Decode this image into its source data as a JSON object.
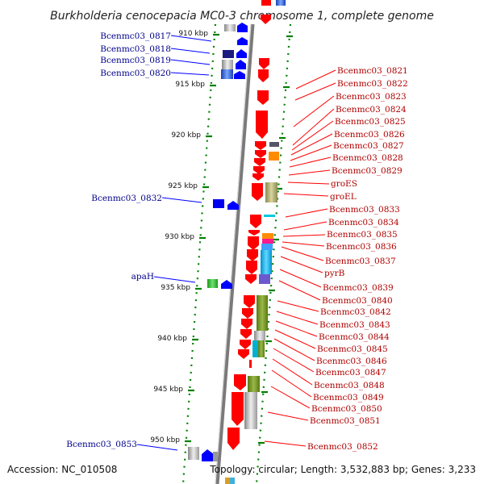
{
  "title": "Burkholderia cenocepacia MC0-3 chromosome 1, complete genome",
  "accession": "Accession: NC_010508",
  "topology": "Topology: circular; Length: 3,532,883 bp; Genes: 3,233",
  "colors": {
    "genome_line": "#888888",
    "forward_gene": "#ff0000",
    "reverse_gene": "#0000ff",
    "blue_label": "#00008b",
    "red_label": "#b00000",
    "dots": "#008000"
  },
  "ticks": [
    {
      "label": "910 kbp"
    },
    {
      "label": "915 kbp"
    },
    {
      "label": "920 kbp"
    },
    {
      "label": "925 kbp"
    },
    {
      "label": "930 kbp"
    },
    {
      "label": "935 kbp"
    },
    {
      "label": "940 kbp"
    },
    {
      "label": "945 kbp"
    },
    {
      "label": "950 kbp"
    }
  ],
  "left_labels": [
    {
      "text": "Bcenmc03_0817"
    },
    {
      "text": "Bcenmc03_0818"
    },
    {
      "text": "Bcenmc03_0819"
    },
    {
      "text": "Bcenmc03_0820"
    },
    {
      "text": "Bcenmc03_0832"
    },
    {
      "text": "apaH"
    },
    {
      "text": "Bcenmc03_0853"
    }
  ],
  "right_labels": [
    {
      "text": "Bcenmc03_0821"
    },
    {
      "text": "Bcenmc03_0822"
    },
    {
      "text": "Bcenmc03_0823"
    },
    {
      "text": "Bcenmc03_0824"
    },
    {
      "text": "Bcenmc03_0825"
    },
    {
      "text": "Bcenmc03_0826"
    },
    {
      "text": "Bcenmc03_0827"
    },
    {
      "text": "Bcenmc03_0828"
    },
    {
      "text": "Bcenmc03_0829"
    },
    {
      "text": "groES"
    },
    {
      "text": "groEL"
    },
    {
      "text": "Bcenmc03_0833"
    },
    {
      "text": "Bcenmc03_0834"
    },
    {
      "text": "Bcenmc03_0835"
    },
    {
      "text": "Bcenmc03_0836"
    },
    {
      "text": "Bcenmc03_0837"
    },
    {
      "text": "pyrB"
    },
    {
      "text": "Bcenmc03_0839"
    },
    {
      "text": "Bcenmc03_0840"
    },
    {
      "text": "Bcenmc03_0842"
    },
    {
      "text": "Bcenmc03_0843"
    },
    {
      "text": "Bcenmc03_0844"
    },
    {
      "text": "Bcenmc03_0845"
    },
    {
      "text": "Bcenmc03_0846"
    },
    {
      "text": "Bcenmc03_0847"
    },
    {
      "text": "Bcenmc03_0848"
    },
    {
      "text": "Bcenmc03_0849"
    },
    {
      "text": "Bcenmc03_0850"
    },
    {
      "text": "Bcenmc03_0851"
    },
    {
      "text": "Bcenmc03_0852"
    }
  ]
}
